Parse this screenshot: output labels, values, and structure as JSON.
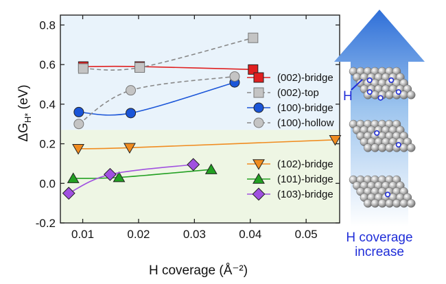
{
  "chart_data": {
    "type": "line",
    "xlabel": "H coverage (Å⁻²)",
    "ylabel_main": "ΔG",
    "ylabel_sub": "H*",
    "ylabel_unit": " (eV)",
    "xlim": [
      0.006,
      0.056
    ],
    "ylim": [
      -0.2,
      0.85
    ],
    "xticks": [
      0.01,
      0.02,
      0.03,
      0.04,
      0.05
    ],
    "xtick_labels": [
      "0.01",
      "0.02",
      "0.03",
      "0.04",
      "0.05"
    ],
    "yticks": [
      -0.2,
      0.0,
      0.2,
      0.4,
      0.6,
      0.8
    ],
    "ytick_labels": [
      "-0.2",
      "0.0",
      "0.2",
      "0.4",
      "0.6",
      "0.8"
    ],
    "bands": [
      {
        "name": "upper",
        "from": 0.27,
        "to": 0.85,
        "color": "#e9f3fb"
      },
      {
        "name": "lower",
        "from": -0.2,
        "to": 0.27,
        "color": "#eef6e4"
      }
    ],
    "series": [
      {
        "name": "(002)-bridge",
        "color": "#e02020",
        "marker": "square",
        "dashed": false,
        "x": [
          0.0101,
          0.0202,
          0.0405
        ],
        "y": [
          0.59,
          0.59,
          0.575
        ]
      },
      {
        "name": "(002)-top",
        "color": "#888888",
        "marker": "square",
        "dashed": true,
        "x": [
          0.0101,
          0.0202,
          0.0405
        ],
        "y": [
          0.58,
          0.585,
          0.735
        ]
      },
      {
        "name": "(100)-bridge",
        "color": "#1a55d8",
        "marker": "circle",
        "dashed": false,
        "x": [
          0.0093,
          0.0186,
          0.0372
        ],
        "y": [
          0.36,
          0.355,
          0.51
        ]
      },
      {
        "name": "(100)-hollow",
        "color": "#888888",
        "marker": "circle",
        "dashed": true,
        "x": [
          0.0093,
          0.0186,
          0.0372
        ],
        "y": [
          0.3,
          0.47,
          0.54
        ]
      },
      {
        "name": "(102)-bridge",
        "color": "#f08c20",
        "marker": "triangle-down",
        "dashed": false,
        "x": [
          0.0092,
          0.0184,
          0.0552
        ],
        "y": [
          0.175,
          0.18,
          0.22
        ]
      },
      {
        "name": "(101)-bridge",
        "color": "#22a022",
        "marker": "triangle-up",
        "dashed": false,
        "x": [
          0.0083,
          0.0165,
          0.033
        ],
        "y": [
          0.025,
          0.03,
          0.07
        ]
      },
      {
        "name": "(103)-bridge",
        "color": "#a050e0",
        "marker": "diamond",
        "dashed": false,
        "x": [
          0.0075,
          0.0149,
          0.0298
        ],
        "y": [
          -0.05,
          0.045,
          0.095
        ]
      }
    ],
    "legend_upper": [
      0,
      1,
      2,
      3
    ],
    "legend_lower": [
      4,
      5,
      6
    ]
  },
  "illustration": {
    "h_label": "H",
    "arrow_text_line1": "H coverage",
    "arrow_text_line2": "increase",
    "arrow_color": "#2f6fd8",
    "text_color": "#1f2dd8"
  }
}
